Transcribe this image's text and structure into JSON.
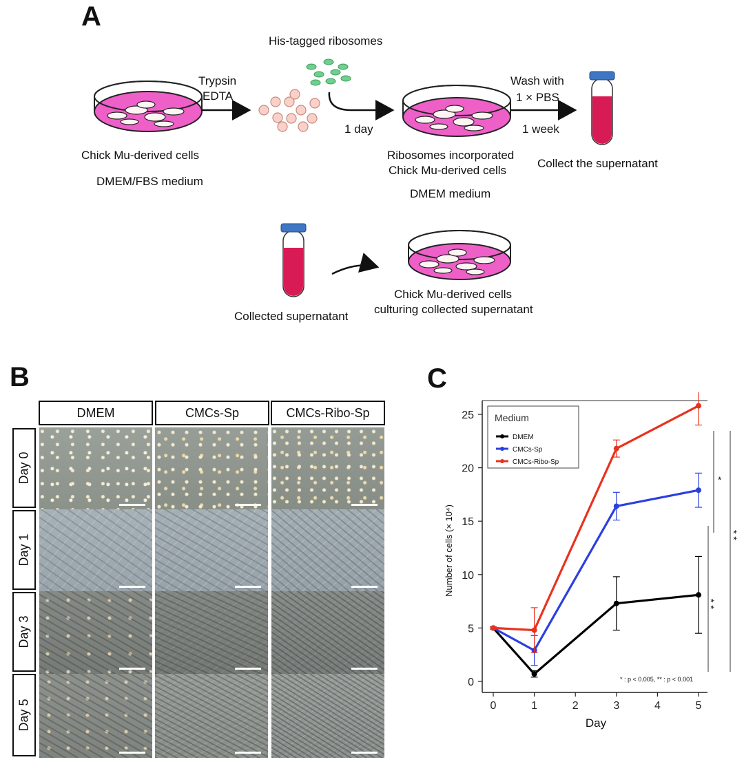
{
  "panel_a": {
    "letter": "A",
    "step_his_ribosomes": "His-tagged ribosomes",
    "step_trypsin": "Trypsin",
    "step_edta": "EDTA",
    "step_one_day": "1 day",
    "step_wash_line1": "Wash with",
    "step_wash_line2": "1 × PBS",
    "step_one_week": "1 week",
    "label_chick_cells": "Chick Mu-derived cells",
    "label_dmem_fbs": "DMEM/FBS medium",
    "label_ribo_line1": "Ribosomes incorporated",
    "label_ribo_line2": "Chick Mu-derived cells",
    "label_dmem_medium": "DMEM medium",
    "label_collect": "Collect the supernatant",
    "label_collected": "Collected supernatant",
    "label_culture_line1": "Chick Mu-derived cells",
    "label_culture_line2": "culturing collected supernatant",
    "colors": {
      "medium_pink": "#ee5fc8",
      "tube_red": "#d81b55",
      "tube_cap": "#3f77c4",
      "ribosome_green": "#6fcf8e"
    }
  },
  "panel_b": {
    "letter": "B",
    "columns": [
      "DMEM",
      "CMCs-Sp",
      "CMCs-Ribo-Sp"
    ],
    "rows": [
      "Day 0",
      "Day 1",
      "Day 3",
      "Day 5"
    ]
  },
  "panel_c": {
    "letter": "C",
    "legend_title": "Medium",
    "significance_note": "* : p < 0.005, ** : p < 0.001",
    "sig_marks": [
      "*",
      "* *",
      "* *"
    ]
  },
  "chart_data": {
    "type": "line",
    "xlabel": "Day",
    "ylabel": "Number of cells (× 10⁴)",
    "x": [
      0,
      1,
      3,
      5
    ],
    "xticks": [
      0,
      1,
      2,
      3,
      4,
      5
    ],
    "yticks": [
      0,
      5,
      10,
      15,
      20,
      25
    ],
    "xlim": [
      -0.2,
      5.3
    ],
    "ylim": [
      -0.5,
      28
    ],
    "legend_placement": "top-left",
    "series": [
      {
        "name": "DMEM",
        "color": "#000000",
        "values": [
          5.0,
          0.7,
          7.3,
          8.1
        ],
        "errors": [
          0.1,
          0.3,
          2.5,
          3.6
        ]
      },
      {
        "name": "CMCs-Sp",
        "color": "#2b3fe0",
        "values": [
          5.0,
          2.9,
          16.4,
          17.9
        ],
        "errors": [
          0.1,
          1.4,
          1.3,
          1.6
        ]
      },
      {
        "name": "CMCs-Ribo-Sp",
        "color": "#e8321e",
        "values": [
          5.0,
          4.8,
          21.8,
          25.8
        ],
        "errors": [
          0.1,
          2.1,
          0.8,
          1.8
        ]
      }
    ]
  }
}
